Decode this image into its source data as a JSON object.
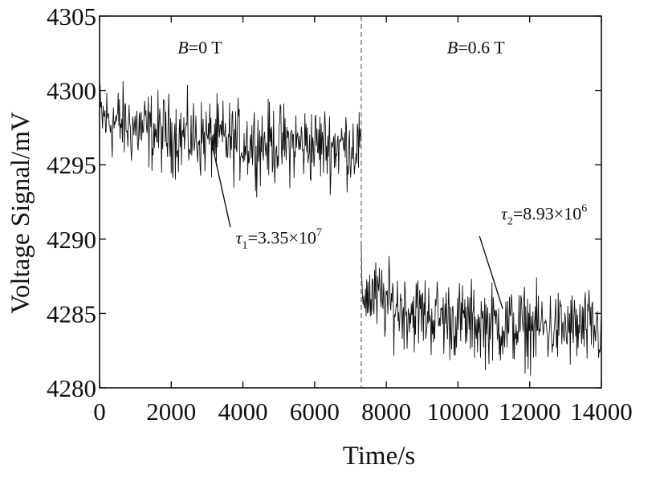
{
  "chart_data": {
    "type": "line",
    "xlabel": "Time/s",
    "ylabel": "Voltage Signal/mV",
    "xlim": [
      0,
      14000
    ],
    "ylim": [
      4280,
      4305
    ],
    "x_ticks": [
      0,
      2000,
      4000,
      6000,
      8000,
      10000,
      12000,
      14000
    ],
    "x_tick_labels": [
      "0",
      "2000",
      "4000",
      "6000",
      "8000",
      "10000",
      "12000",
      "14000"
    ],
    "y_ticks": [
      4280,
      4285,
      4290,
      4295,
      4300,
      4305
    ],
    "y_tick_labels": [
      "4280",
      "4285",
      "4290",
      "4295",
      "4300",
      "4305"
    ],
    "grid": false,
    "switch_time": 7300,
    "series": [
      {
        "x": [
          0,
          7300
        ],
        "y": [
          4298.2,
          4296.2
        ],
        "noise_amplitude": 1.3,
        "shape": "exponential-decay",
        "tau_label": "3.35×10^7"
      },
      {
        "x": [
          7300,
          14000
        ],
        "y": [
          4286.5,
          4283.8
        ],
        "noise_amplitude": 1.3,
        "shape": "exponential-decay",
        "tau_label": "8.93×10^6"
      }
    ],
    "regions": [
      {
        "var": "B",
        "label": "=0 T",
        "x": 2800,
        "y": 4302.5
      },
      {
        "var": "B",
        "label": "=0.6 T",
        "x": 10500,
        "y": 4302.5
      }
    ],
    "annotations": [
      {
        "symbol": "τ",
        "sub": "1",
        "mantissa": "=3.35×10",
        "exp": "7",
        "text_at": [
          3800,
          4289.7
        ],
        "arrow_from": [
          3650,
          4290.8
        ],
        "arrow_to": [
          3100,
          4296.8
        ]
      },
      {
        "symbol": "τ",
        "sub": "2",
        "mantissa": "=8.93×10",
        "exp": "6",
        "text_at": [
          11200,
          4291.3
        ],
        "arrow_from": [
          10600,
          4290.2
        ],
        "arrow_to": [
          11250,
          4285.3
        ]
      }
    ]
  }
}
